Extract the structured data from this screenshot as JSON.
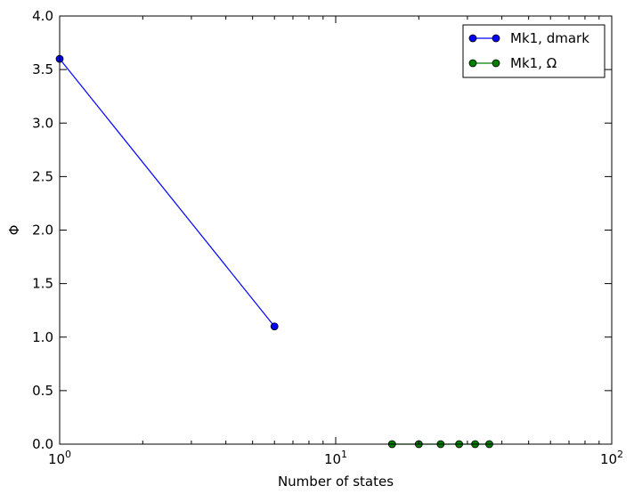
{
  "chart_data": {
    "type": "line",
    "title": "",
    "xlabel": "Number of states",
    "ylabel": "Φ",
    "xscale": "log",
    "xlim": [
      1,
      100
    ],
    "ylim": [
      0.0,
      4.0
    ],
    "xticks": [
      {
        "value": 1,
        "base": "10",
        "exp": "0"
      },
      {
        "value": 10,
        "base": "10",
        "exp": "1"
      },
      {
        "value": 100,
        "base": "10",
        "exp": "2"
      }
    ],
    "yticks": [
      "0.0",
      "0.5",
      "1.0",
      "1.5",
      "2.0",
      "2.5",
      "3.0",
      "3.5",
      "4.0"
    ],
    "grid": false,
    "legend_position": "top-right",
    "series": [
      {
        "name": "Mk1, dmark",
        "color": "#0000ff",
        "marker": "circle",
        "x": [
          1,
          6
        ],
        "y": [
          3.6,
          1.1
        ]
      },
      {
        "name": "Mk1, Ω",
        "color": "#008000",
        "marker": "circle",
        "x": [
          16,
          20,
          24,
          28,
          32,
          36
        ],
        "y": [
          0.0,
          0.0,
          0.0,
          0.0,
          0.0,
          0.0
        ]
      }
    ]
  }
}
